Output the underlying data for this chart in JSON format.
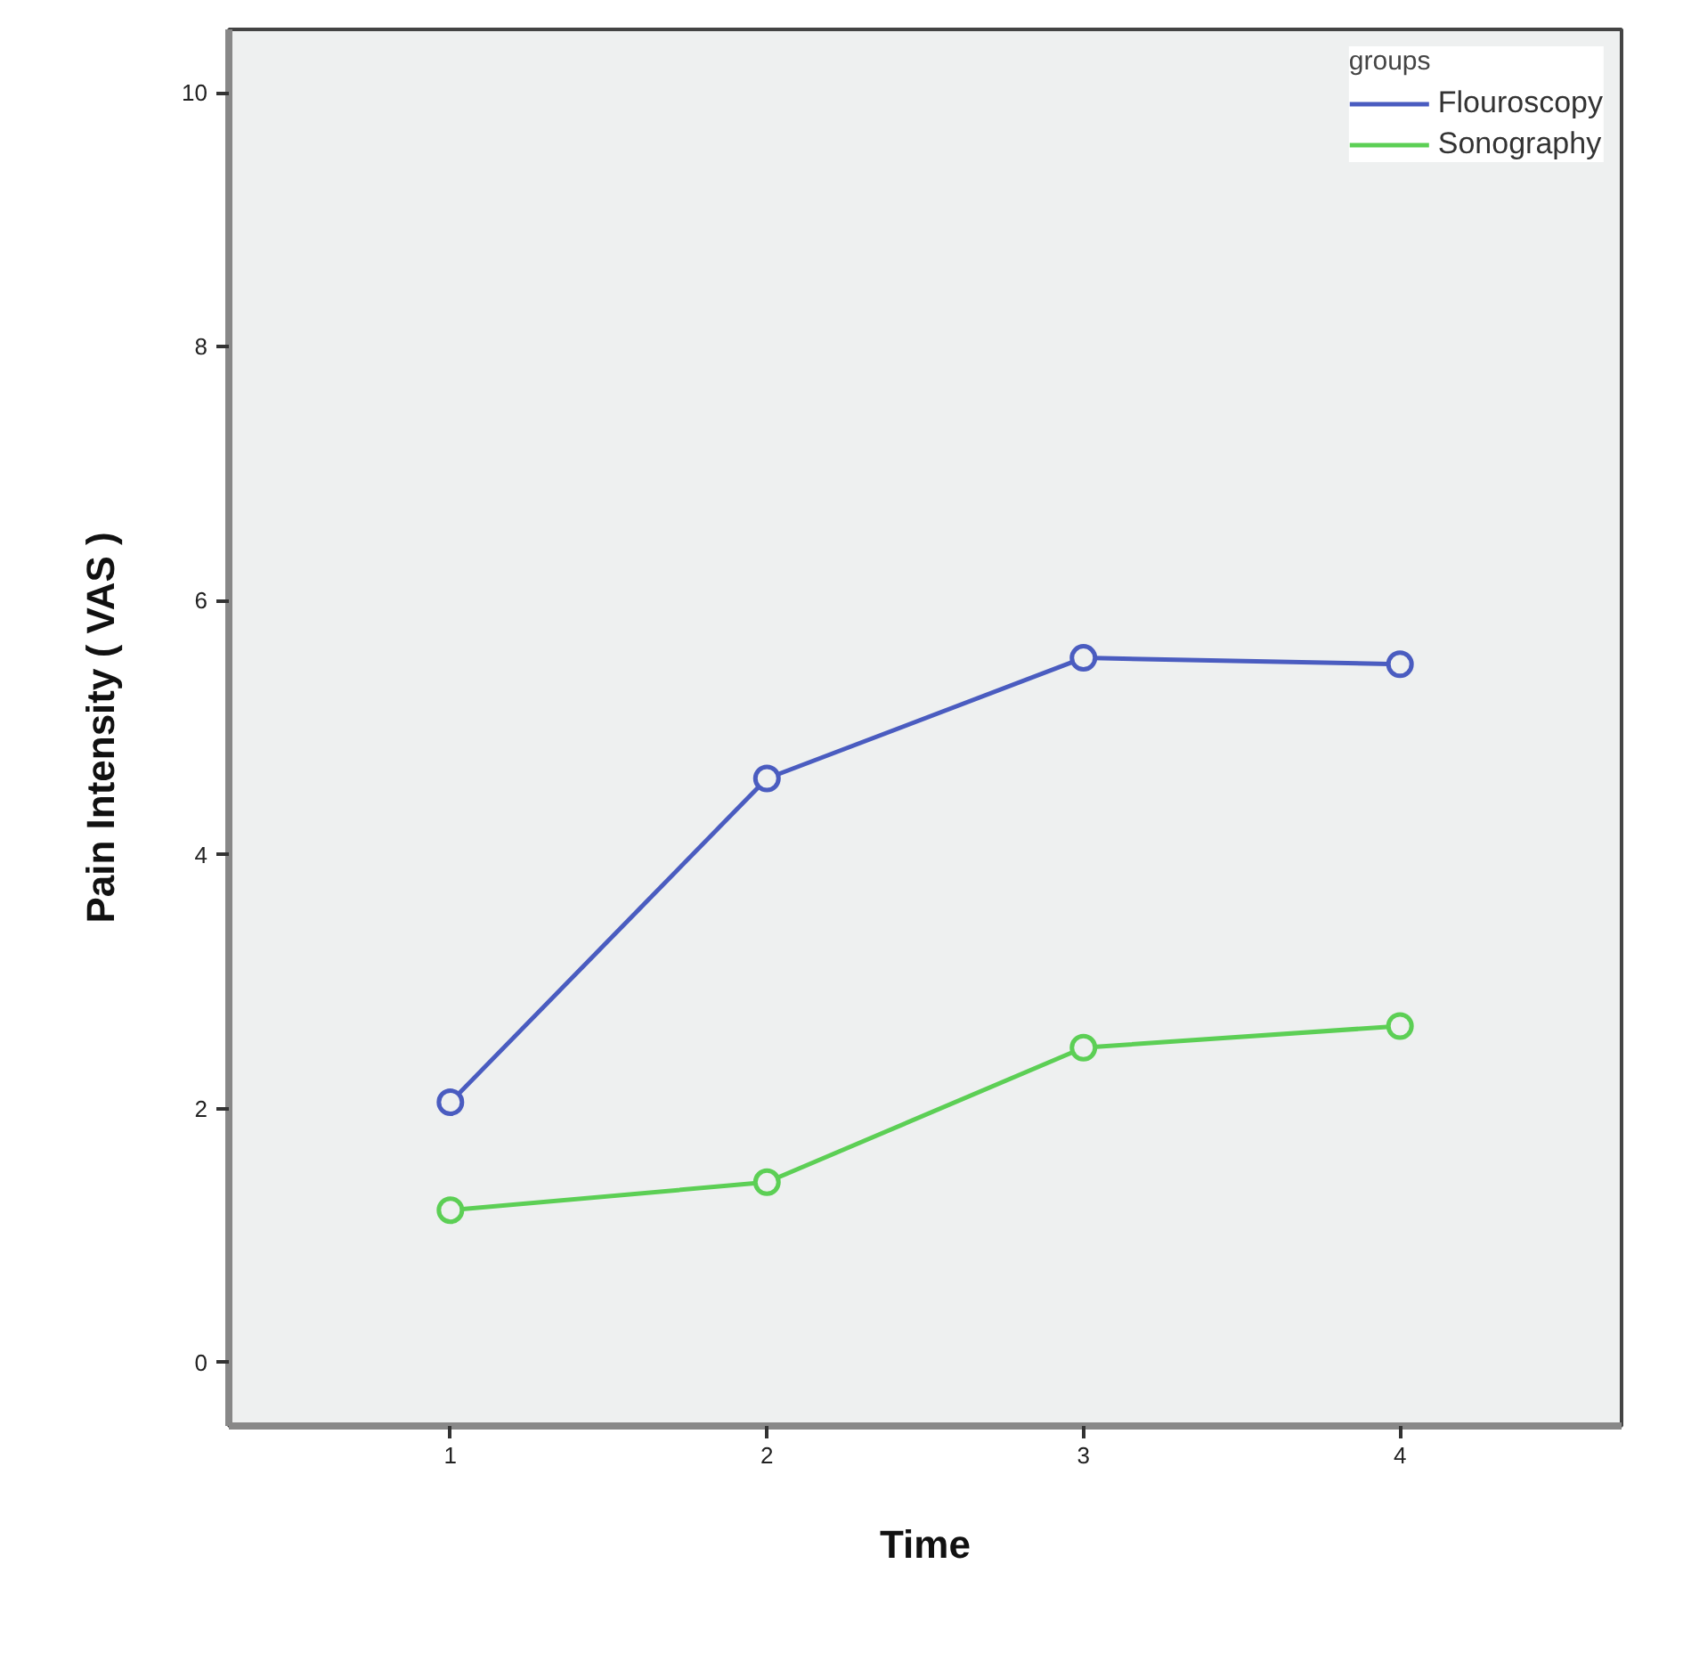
{
  "chart_data": {
    "type": "line",
    "xlabel": "Time",
    "ylabel": "Pain Intensity ( VAS )",
    "legend_title": "groups",
    "categories": [
      "1",
      "2",
      "3",
      "4"
    ],
    "series": [
      {
        "name": "Flouroscopy",
        "color": "#4a5cc0",
        "values": [
          2.05,
          4.6,
          5.55,
          5.5
        ]
      },
      {
        "name": "Sonography",
        "color": "#5ccf55",
        "values": [
          1.2,
          1.42,
          2.48,
          2.65
        ]
      }
    ],
    "ylim": [
      -0.5,
      10.5
    ],
    "yticks": [
      0,
      2,
      4,
      6,
      8,
      10
    ],
    "marker": "circle",
    "line_style": "solid",
    "legend": "top right",
    "grid": false
  }
}
